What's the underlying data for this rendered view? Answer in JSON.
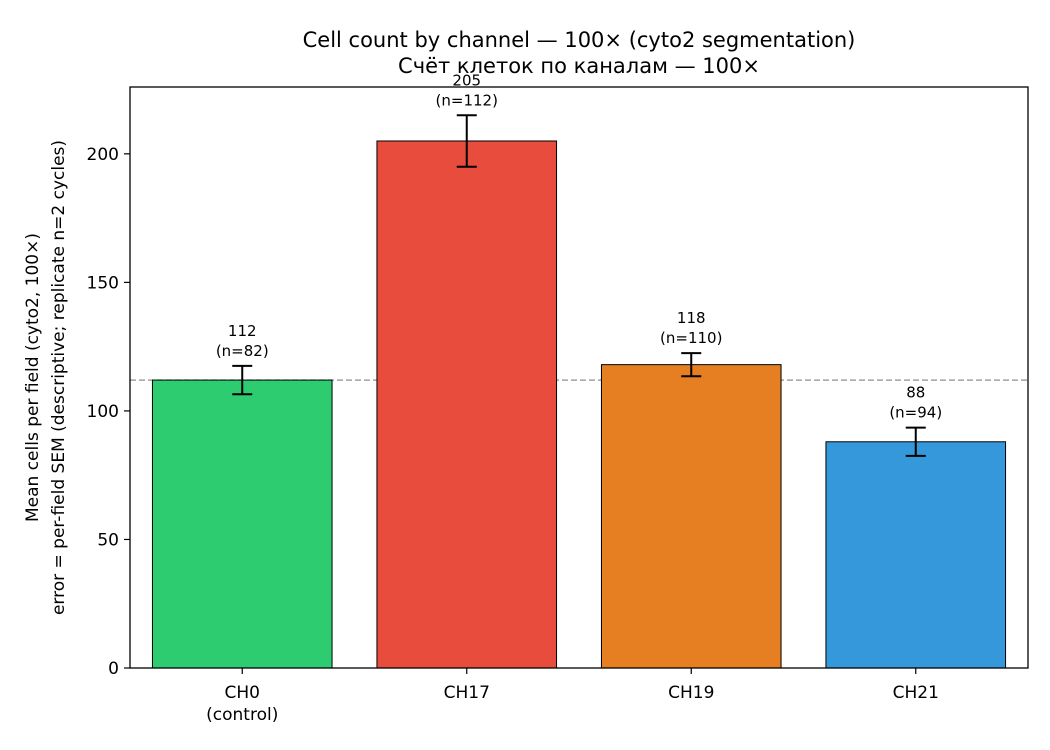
{
  "chart_data": {
    "type": "bar",
    "title": [
      "Cell count by channel — 100× (cyto2 segmentation)",
      "Счёт клеток по каналам — 100×"
    ],
    "ylabel": [
      "Mean cells per field (cyto2, 100×)",
      "error = per-field SEM (descriptive; replicate n=2 cycles)"
    ],
    "xlabel": "",
    "ylim": [
      0,
      226
    ],
    "yticks": [
      0,
      50,
      100,
      150,
      200
    ],
    "grid": false,
    "reference_line": {
      "y": 112,
      "style": "dashed",
      "color": "#a0a0a0"
    },
    "categories": [
      [
        "CH0",
        "(control)"
      ],
      [
        "CH17"
      ],
      [
        "CH19"
      ],
      [
        "CH21"
      ]
    ],
    "values": [
      112,
      205,
      118,
      88
    ],
    "errors": [
      5.5,
      10,
      4.5,
      5.5
    ],
    "n": [
      82,
      112,
      110,
      94
    ],
    "value_labels": [
      "112",
      "205",
      "118",
      "88"
    ],
    "n_labels": [
      "(n=82)",
      "(n=112)",
      "(n=110)",
      "(n=94)"
    ],
    "colors": [
      "#2ecc71",
      "#e74c3c",
      "#e67e22",
      "#3498db"
    ]
  }
}
